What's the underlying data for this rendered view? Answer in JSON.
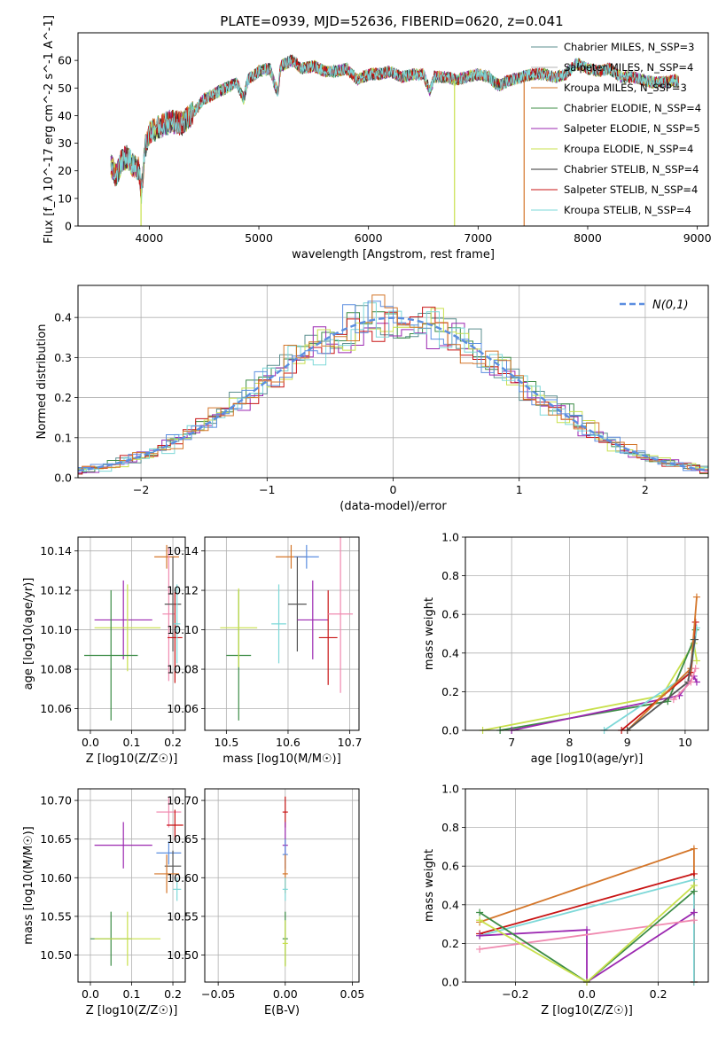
{
  "figure_title": "PLATE=0939, MJD=52636, FIBERID=0620, z=0.041",
  "chart_data": [
    {
      "id": "spectrum",
      "type": "line",
      "title": "PLATE=0939, MJD=52636, FIBERID=0620, z=0.041",
      "xlabel": "wavelength [Angstrom, rest frame]",
      "ylabel": "Flux [f_λ 10^-17 erg cm^-2 s^-1 A^-1]",
      "xlim": [
        3350,
        9100
      ],
      "ylim": [
        0,
        70
      ],
      "xticks": [
        4000,
        5000,
        6000,
        7000,
        8000,
        9000
      ],
      "yticks": [
        0,
        10,
        20,
        30,
        40,
        50,
        60
      ],
      "grid": false,
      "legend_position": "top-right",
      "anchors": [
        [
          3650,
          22
        ],
        [
          3700,
          18
        ],
        [
          3750,
          24
        ],
        [
          3800,
          25
        ],
        [
          3850,
          22
        ],
        [
          3900,
          21
        ],
        [
          3930,
          12
        ],
        [
          3960,
          28
        ],
        [
          4000,
          34
        ],
        [
          4100,
          36
        ],
        [
          4200,
          38
        ],
        [
          4300,
          37
        ],
        [
          4400,
          41
        ],
        [
          4500,
          46
        ],
        [
          4600,
          48
        ],
        [
          4700,
          50
        ],
        [
          4800,
          52
        ],
        [
          4860,
          46
        ],
        [
          4900,
          53
        ],
        [
          5000,
          56
        ],
        [
          5100,
          57
        ],
        [
          5172,
          48
        ],
        [
          5200,
          58
        ],
        [
          5300,
          60
        ],
        [
          5400,
          57
        ],
        [
          5500,
          58
        ],
        [
          5600,
          56
        ],
        [
          5700,
          56
        ],
        [
          5800,
          57
        ],
        [
          5900,
          53
        ],
        [
          6000,
          55
        ],
        [
          6100,
          55
        ],
        [
          6200,
          56
        ],
        [
          6300,
          54
        ],
        [
          6400,
          55
        ],
        [
          6500,
          55
        ],
        [
          6563,
          49
        ],
        [
          6600,
          54
        ],
        [
          6700,
          54
        ],
        [
          6800,
          53
        ],
        [
          6900,
          54
        ],
        [
          7000,
          55
        ],
        [
          7100,
          54
        ],
        [
          7150,
          52
        ],
        [
          7200,
          51
        ],
        [
          7300,
          53
        ],
        [
          7400,
          54
        ],
        [
          7500,
          55
        ],
        [
          7600,
          55
        ],
        [
          7700,
          54
        ],
        [
          7800,
          55
        ],
        [
          7900,
          59
        ],
        [
          8000,
          57
        ],
        [
          8100,
          56
        ],
        [
          8200,
          57
        ],
        [
          8300,
          54
        ],
        [
          8400,
          54
        ],
        [
          8500,
          53
        ],
        [
          8600,
          52
        ],
        [
          8700,
          52
        ],
        [
          8800,
          53
        ],
        [
          8830,
          52
        ]
      ],
      "drop_lines": [
        {
          "x": 3925,
          "series": 5
        },
        {
          "x": 6785,
          "series": 5
        },
        {
          "x": 7420,
          "series": 2
        }
      ],
      "series": [
        {
          "name": "Chabrier MILES, N_SSP=3",
          "color": "#5b8f8f"
        },
        {
          "name": "Salpeter MILES, N_SSP=4",
          "color": "#b5b5b5"
        },
        {
          "name": "Kroupa MILES, N_SSP=3",
          "color": "#d4762a"
        },
        {
          "name": "Chabrier ELODIE, N_SSP=4",
          "color": "#3c8c46"
        },
        {
          "name": "Salpeter ELODIE, N_SSP=5",
          "color": "#9b27b0"
        },
        {
          "name": "Kroupa ELODIE, N_SSP=4",
          "color": "#c8e04c"
        },
        {
          "name": "Chabrier STELIB, N_SSP=4",
          "color": "#333333"
        },
        {
          "name": "Salpeter STELIB, N_SSP=4",
          "color": "#c81414"
        },
        {
          "name": "Kroupa STELIB, N_SSP=4",
          "color": "#7dd8d8"
        }
      ]
    },
    {
      "id": "residuals",
      "type": "line",
      "xlabel": "(data-model)/error",
      "ylabel": "Normed distribution",
      "xlim": [
        -2.5,
        2.5
      ],
      "ylim": [
        0,
        0.48
      ],
      "xticks": [
        -2,
        -1,
        0,
        1,
        2
      ],
      "yticks": [
        0.0,
        0.1,
        0.2,
        0.3,
        0.4
      ],
      "grid": true,
      "legend": "N(0,1)",
      "legend_position": "top-right",
      "normal_curve": {
        "mean": 0,
        "sigma": 1,
        "color": "#5b8ee0"
      },
      "histogram_colors": [
        "#5b8f8f",
        "#3c8c46",
        "#9b27b0",
        "#c8e04c",
        "#c81414",
        "#7dd8d8",
        "#5b8ee0",
        "#d4762a"
      ]
    },
    {
      "id": "age_vs_Z",
      "type": "scatter",
      "xlabel": "Z [log10(Z/Z☉)]",
      "ylabel": "age  [log10(age/yr)]",
      "xlim": [
        -0.03,
        0.23
      ],
      "ylim": [
        10.049,
        10.147
      ],
      "xticks": [
        0.0,
        0.1,
        0.2
      ],
      "yticks": [
        10.06,
        10.08,
        10.1,
        10.12,
        10.14
      ],
      "grid": true,
      "points": [
        {
          "x": 0.08,
          "xerr": 0.07,
          "y": 10.105,
          "yerr": 0.02,
          "color": "#9b27b0"
        },
        {
          "x": 0.09,
          "xerr": 0.08,
          "y": 10.101,
          "yerr": 0.022,
          "color": "#c8e04c"
        },
        {
          "x": 0.05,
          "xerr": 0.065,
          "y": 10.087,
          "yerr": 0.033,
          "color": "#3c8c46"
        },
        {
          "x": 0.185,
          "xerr": 0.03,
          "y": 10.137,
          "yerr": 0.006,
          "color": "#d4762a"
        },
        {
          "x": 0.19,
          "xerr": 0.015,
          "y": 10.108,
          "yerr": 0.034,
          "color": "#f08ab0"
        },
        {
          "x": 0.2,
          "xerr": 0.02,
          "y": 10.113,
          "yerr": 0.024,
          "color": "#555555"
        },
        {
          "x": 0.205,
          "xerr": 0.018,
          "y": 10.096,
          "yerr": 0.023,
          "color": "#c81414"
        },
        {
          "x": 0.21,
          "xerr": 0.008,
          "y": 10.103,
          "yerr": 0.02,
          "color": "#7dd8d8"
        }
      ]
    },
    {
      "id": "age_vs_mass",
      "type": "scatter",
      "xlabel": "mass [log10(M/M☉)]",
      "ylabel": "",
      "xlim": [
        10.465,
        10.715
      ],
      "ylim": [
        10.049,
        10.147
      ],
      "xticks": [
        10.5,
        10.6,
        10.7
      ],
      "yticks": [
        10.06,
        10.08,
        10.1,
        10.12,
        10.14
      ],
      "grid": true,
      "points": [
        {
          "x": 10.52,
          "xerr": 0.02,
          "y": 10.087,
          "yerr": 0.033,
          "color": "#3c8c46"
        },
        {
          "x": 10.52,
          "xerr": 0.03,
          "y": 10.101,
          "yerr": 0.02,
          "color": "#c8e04c"
        },
        {
          "x": 10.585,
          "xerr": 0.012,
          "y": 10.103,
          "yerr": 0.02,
          "color": "#7dd8d8"
        },
        {
          "x": 10.605,
          "xerr": 0.025,
          "y": 10.137,
          "yerr": 0.006,
          "color": "#d4762a"
        },
        {
          "x": 10.63,
          "xerr": 0.02,
          "y": 10.137,
          "yerr": 0.006,
          "color": "#5b8ee0"
        },
        {
          "x": 10.615,
          "xerr": 0.015,
          "y": 10.113,
          "yerr": 0.024,
          "color": "#555555"
        },
        {
          "x": 10.64,
          "xerr": 0.025,
          "y": 10.105,
          "yerr": 0.02,
          "color": "#9b27b0"
        },
        {
          "x": 10.665,
          "xerr": 0.015,
          "y": 10.096,
          "yerr": 0.024,
          "color": "#c81414"
        },
        {
          "x": 10.685,
          "xerr": 0.02,
          "y": 10.108,
          "yerr": 0.04,
          "color": "#f08ab0"
        }
      ]
    },
    {
      "id": "mass_weight_vs_age",
      "type": "line",
      "xlabel": "age  [log10(age/yr)]",
      "ylabel": "mass weight",
      "xlim": [
        6.2,
        10.4
      ],
      "ylim": [
        0.0,
        1.0
      ],
      "xticks": [
        7,
        8,
        9,
        10
      ],
      "yticks": [
        0.0,
        0.2,
        0.4,
        0.6,
        0.8,
        1.0
      ],
      "grid": true,
      "series": [
        {
          "color": "#c8e04c",
          "points": [
            [
              6.5,
              0.0
            ],
            [
              9.6,
              0.18
            ],
            [
              10.15,
              0.45
            ],
            [
              10.2,
              0.36
            ]
          ]
        },
        {
          "color": "#3c8c46",
          "points": [
            [
              6.8,
              0.0
            ],
            [
              9.7,
              0.15
            ],
            [
              10.15,
              0.47
            ],
            [
              10.18,
              0.52
            ]
          ]
        },
        {
          "color": "#9b27b0",
          "points": [
            [
              7.0,
              0.0
            ],
            [
              9.9,
              0.18
            ],
            [
              10.15,
              0.28
            ],
            [
              10.2,
              0.25
            ]
          ]
        },
        {
          "color": "#7dd8d8",
          "points": [
            [
              8.6,
              0.0
            ],
            [
              10.1,
              0.3
            ],
            [
              10.2,
              0.53
            ]
          ]
        },
        {
          "color": "#c81414",
          "points": [
            [
              8.9,
              0.0
            ],
            [
              10.1,
              0.3
            ],
            [
              10.18,
              0.56
            ]
          ]
        },
        {
          "color": "#d4762a",
          "points": [
            [
              9.0,
              0.0
            ],
            [
              10.1,
              0.32
            ],
            [
              10.2,
              0.69
            ]
          ]
        },
        {
          "color": "#555555",
          "points": [
            [
              9.0,
              0.0
            ],
            [
              10.05,
              0.25
            ],
            [
              10.17,
              0.47
            ]
          ]
        },
        {
          "color": "#f08ab0",
          "points": [
            [
              9.8,
              0.16
            ],
            [
              10.1,
              0.25
            ],
            [
              10.18,
              0.32
            ]
          ]
        }
      ]
    },
    {
      "id": "mass_vs_Z",
      "type": "scatter",
      "xlabel": "Z [log10(Z/Z☉)]",
      "ylabel": "mass [log10(M/M☉)]",
      "xlim": [
        -0.03,
        0.23
      ],
      "ylim": [
        10.465,
        10.715
      ],
      "xticks": [
        0.0,
        0.1,
        0.2
      ],
      "yticks": [
        10.5,
        10.55,
        10.6,
        10.65,
        10.7
      ],
      "grid": true,
      "points": [
        {
          "x": 0.08,
          "xerr": 0.07,
          "y": 10.642,
          "yerr": 0.03,
          "color": "#9b27b0"
        },
        {
          "x": 0.05,
          "xerr": 0.05,
          "y": 10.521,
          "yerr": 0.035,
          "color": "#3c8c46"
        },
        {
          "x": 0.09,
          "xerr": 0.08,
          "y": 10.521,
          "yerr": 0.035,
          "color": "#c8e04c"
        },
        {
          "x": 0.19,
          "xerr": 0.03,
          "y": 10.685,
          "yerr": 0.02,
          "color": "#f08ab0"
        },
        {
          "x": 0.205,
          "xerr": 0.02,
          "y": 10.668,
          "yerr": 0.02,
          "color": "#c81414"
        },
        {
          "x": 0.19,
          "xerr": 0.03,
          "y": 10.632,
          "yerr": 0.015,
          "color": "#5b8ee0"
        },
        {
          "x": 0.2,
          "xerr": 0.02,
          "y": 10.615,
          "yerr": 0.02,
          "color": "#555555"
        },
        {
          "x": 0.185,
          "xerr": 0.03,
          "y": 10.605,
          "yerr": 0.025,
          "color": "#d4762a"
        },
        {
          "x": 0.21,
          "xerr": 0.01,
          "y": 10.585,
          "yerr": 0.015,
          "color": "#7dd8d8"
        }
      ]
    },
    {
      "id": "mass_vs_EBV",
      "type": "scatter",
      "xlabel": "E(B-V)",
      "ylabel": "",
      "xlim": [
        -0.06,
        0.055
      ],
      "ylim": [
        10.465,
        10.715
      ],
      "xticks": [
        -0.05,
        0.0,
        0.05
      ],
      "yticks": [
        10.5,
        10.55,
        10.6,
        10.65,
        10.7
      ],
      "grid": true,
      "points": [
        {
          "x": 0.0,
          "y": 10.685,
          "yerr": 0.02,
          "color": "#c81414"
        },
        {
          "x": 0.0,
          "y": 10.642,
          "yerr": 0.03,
          "color": "#9b27b0"
        },
        {
          "x": 0.0,
          "y": 10.63,
          "yerr": 0.02,
          "color": "#5b8ee0"
        },
        {
          "x": 0.0,
          "y": 10.605,
          "yerr": 0.025,
          "color": "#d4762a"
        },
        {
          "x": 0.0,
          "y": 10.585,
          "yerr": 0.015,
          "color": "#7dd8d8"
        },
        {
          "x": 0.0,
          "y": 10.521,
          "yerr": 0.035,
          "color": "#3c8c46"
        },
        {
          "x": 0.0,
          "y": 10.515,
          "yerr": 0.03,
          "color": "#c8e04c"
        }
      ]
    },
    {
      "id": "mass_weight_vs_Z",
      "type": "line",
      "xlabel": "Z [log10(Z/Z☉)]",
      "ylabel": "mass weight",
      "xlim": [
        -0.34,
        0.34
      ],
      "ylim": [
        0.0,
        1.0
      ],
      "xticks": [
        -0.2,
        0.0,
        0.2
      ],
      "yticks": [
        0.0,
        0.2,
        0.4,
        0.6,
        0.8,
        1.0
      ],
      "grid": true,
      "series": [
        {
          "color": "#d4762a",
          "points": [
            [
              -0.3,
              0.31
            ],
            [
              0.3,
              0.69
            ],
            [
              0.3,
              0.0
            ]
          ]
        },
        {
          "color": "#c81414",
          "points": [
            [
              -0.3,
              0.25
            ],
            [
              0.3,
              0.56
            ],
            [
              0.3,
              0.0
            ]
          ]
        },
        {
          "color": "#7dd8d8",
          "points": [
            [
              -0.3,
              0.24
            ],
            [
              0.3,
              0.53
            ],
            [
              0.3,
              0.0
            ]
          ]
        },
        {
          "color": "#9b27b0",
          "points": [
            [
              -0.3,
              0.24
            ],
            [
              0.0,
              0.27
            ],
            [
              0.0,
              0.0
            ],
            [
              0.3,
              0.36
            ]
          ]
        },
        {
          "color": "#f08ab0",
          "points": [
            [
              -0.3,
              0.17
            ],
            [
              0.3,
              0.32
            ]
          ]
        },
        {
          "color": "#3c8c46",
          "points": [
            [
              -0.3,
              0.36
            ],
            [
              0.0,
              0.0
            ],
            [
              0.3,
              0.47
            ]
          ]
        },
        {
          "color": "#c8e04c",
          "points": [
            [
              -0.3,
              0.32
            ],
            [
              0.0,
              0.0
            ],
            [
              0.3,
              0.5
            ]
          ]
        }
      ]
    }
  ]
}
